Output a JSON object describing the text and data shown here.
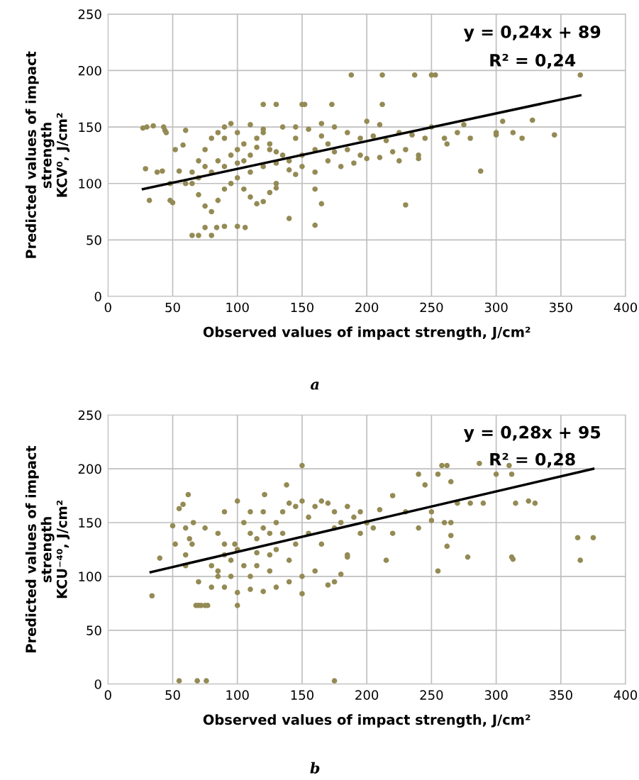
{
  "chart_data": [
    {
      "type": "scatter",
      "xlabel": "Observed values of impact strength, J/cm²",
      "ylabel": "Predicted values of impact\nstrength\nKCV⁰, J/cm²",
      "xlim": [
        0,
        400
      ],
      "ylim": [
        0,
        250
      ],
      "xticks": [
        0,
        50,
        100,
        150,
        200,
        250,
        300,
        350,
        400
      ],
      "yticks": [
        0,
        50,
        100,
        150,
        200,
        250
      ],
      "grid": true,
      "annotations": [
        "y = 0,24x + 89",
        "R² = 0,24",
        "a"
      ],
      "series": [
        {
          "marker": "circle",
          "color": "#948a54",
          "x": [
            27,
            30,
            35,
            43,
            44,
            45,
            29,
            32,
            38,
            42,
            48,
            48,
            50,
            55,
            52,
            58,
            60,
            65,
            70,
            80,
            100,
            106,
            90,
            84,
            75,
            60,
            65,
            70,
            75,
            80,
            85,
            90,
            95,
            100,
            105,
            110,
            115,
            120,
            125,
            130,
            70,
            75,
            80,
            85,
            90,
            95,
            100,
            105,
            110,
            115,
            120,
            125,
            130,
            80,
            90,
            100,
            110,
            120,
            130,
            140,
            150,
            160,
            170,
            145,
            155,
            165,
            175,
            185,
            195,
            205,
            215,
            225,
            235,
            245,
            140,
            150,
            160,
            170,
            180,
            190,
            200,
            210,
            220,
            230,
            240,
            120,
            130,
            150,
            152,
            173,
            212,
            130,
            145,
            160,
            165,
            160,
            140,
            200,
            210,
            250,
            260,
            270,
            275,
            280,
            300,
            300,
            305,
            313,
            320,
            328,
            345,
            288,
            230,
            188,
            212,
            237,
            250,
            253,
            365,
            262,
            240,
            225,
            195,
            185,
            175,
            135,
            125,
            115,
            105,
            95,
            85,
            75,
            65,
            70,
            90,
            100,
            110,
            120,
            135,
            145,
            165
          ],
          "values": [
            149,
            150,
            151,
            150,
            147,
            145,
            113,
            85,
            110,
            111,
            100,
            85,
            83,
            111,
            130,
            134,
            147,
            54,
            54,
            54,
            62,
            61,
            62,
            61,
            61,
            100,
            110,
            120,
            130,
            140,
            145,
            150,
            153,
            130,
            120,
            125,
            140,
            145,
            135,
            128,
            90,
            80,
            75,
            85,
            95,
            100,
            105,
            95,
            88,
            82,
            84,
            92,
            96,
            110,
            115,
            118,
            110,
            115,
            118,
            120,
            125,
            130,
            135,
            140,
            148,
            142,
            150,
            145,
            140,
            142,
            138,
            145,
            143,
            140,
            112,
            115,
            110,
            120,
            115,
            118,
            122,
            123,
            128,
            130,
            125,
            170,
            170,
            170,
            170,
            170,
            170,
            100,
            108,
            95,
            82,
            63,
            69,
            155,
            152,
            150,
            140,
            145,
            152,
            140,
            145,
            143,
            155,
            145,
            140,
            156,
            143,
            111,
            81,
            196,
            196,
            196,
            196,
            196,
            196,
            135,
            122,
            120,
            125,
            130,
            128,
            125,
            130,
            132,
            135,
            125,
            120,
            115,
            100,
            105,
            140,
            145,
            152,
            148,
            150,
            150,
            153
          ]
        },
        {
          "type": "line",
          "color": "#000000",
          "x": [
            27,
            365
          ],
          "values": [
            95,
            178
          ]
        }
      ]
    },
    {
      "type": "scatter",
      "xlabel": "Observed values of impact strength, J/cm²",
      "ylabel": "Predicted values of impact\nstrength\nKCU⁻⁴⁰, J/cm²",
      "xlim": [
        0,
        400
      ],
      "ylim": [
        0,
        250
      ],
      "xticks": [
        0,
        50,
        100,
        150,
        200,
        250,
        300,
        350,
        400
      ],
      "yticks": [
        0,
        50,
        100,
        150,
        200,
        250
      ],
      "grid": true,
      "annotations": [
        "y = 0,28x + 95",
        "R² = 0,28",
        "b"
      ],
      "series": [
        {
          "marker": "circle",
          "color": "#948a54",
          "x": [
            34,
            40,
            50,
            52,
            55,
            58,
            60,
            62,
            63,
            66,
            68,
            70,
            72,
            75,
            77,
            80,
            85,
            90,
            95,
            100,
            98,
            105,
            110,
            115,
            120,
            125,
            130,
            135,
            140,
            145,
            150,
            155,
            160,
            165,
            170,
            175,
            180,
            185,
            190,
            195,
            200,
            60,
            70,
            80,
            90,
            100,
            110,
            120,
            130,
            140,
            150,
            160,
            170,
            175,
            180,
            150,
            150,
            138,
            121,
            100,
            55,
            69,
            76,
            175,
            210,
            220,
            230,
            240,
            245,
            250,
            255,
            258,
            262,
            265,
            270,
            280,
            240,
            250,
            260,
            265,
            262,
            265,
            255,
            220,
            215,
            185,
            185,
            200,
            278,
            287,
            312,
            315,
            310,
            312,
            313,
            290,
            300,
            325,
            330,
            363,
            375,
            365,
            145,
            125,
            105,
            115,
            135,
            155,
            165,
            175,
            195,
            205,
            85,
            95,
            110,
            120,
            90,
            75,
            65,
            60,
            130,
            140,
            100,
            110,
            90,
            85,
            115,
            125
          ],
          "values": [
            82,
            117,
            147,
            130,
            163,
            167,
            120,
            176,
            135,
            150,
            73,
            73,
            73,
            73,
            73,
            110,
            140,
            120,
            100,
            73,
            130,
            150,
            160,
            135,
            145,
            120,
            150,
            160,
            168,
            165,
            170,
            155,
            165,
            170,
            168,
            160,
            150,
            165,
            155,
            160,
            150,
            110,
            95,
            90,
            90,
            85,
            88,
            86,
            90,
            95,
            100,
            105,
            92,
            95,
            102,
            84,
            203,
            185,
            176,
            170,
            3,
            3,
            3,
            3,
            162,
            175,
            160,
            195,
            185,
            160,
            195,
            203,
            203,
            188,
            168,
            168,
            145,
            152,
            150,
            150,
            128,
            138,
            105,
            140,
            115,
            118,
            120,
            150,
            118,
            205,
            195,
            168,
            203,
            118,
            116,
            168,
            195,
            170,
            168,
            136,
            136,
            115,
            130,
            105,
            110,
            122,
            140,
            140,
            130,
            145,
            140,
            145,
            105,
            115,
            140,
            160,
            160,
            145,
            130,
            145,
            125,
            115,
            125,
            100,
            130,
            100,
            110,
            140
          ]
        },
        {
          "type": "line",
          "color": "#000000",
          "x": [
            33,
            375
          ],
          "values": [
            104,
            200
          ]
        }
      ]
    }
  ]
}
